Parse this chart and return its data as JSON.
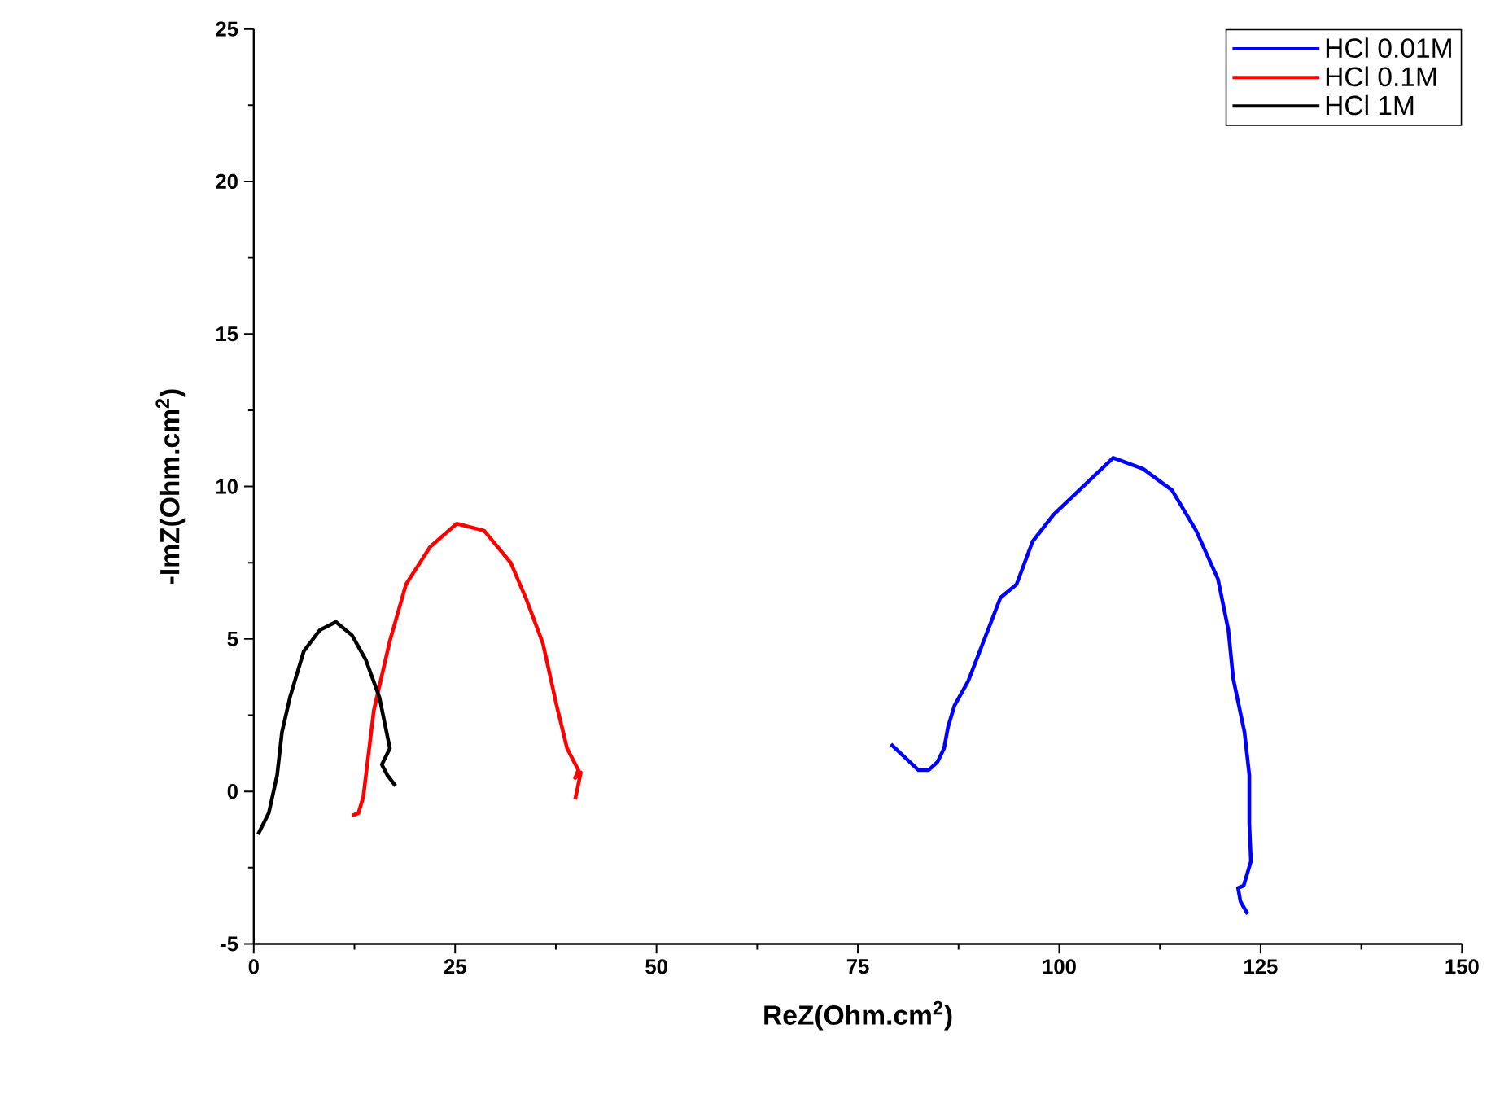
{
  "chart_data": {
    "type": "line",
    "xlabel": "ReZ(Ohm.cm$^{2}$)",
    "ylabel": "-ImZ(Ohm.cm$^{2}$)",
    "xlim": [
      0,
      150
    ],
    "xticks": [
      0,
      25,
      50,
      75,
      100,
      125,
      150
    ],
    "ylim": [
      -5,
      25
    ],
    "yticks": [
      -5,
      0,
      5,
      10,
      15,
      20,
      25
    ],
    "legend": "top right",
    "grid": false,
    "marker": "none",
    "line_style": "solid",
    "series": [
      {
        "name": "HCl 0.01M",
        "color": "#0000ff",
        "x": [
          79.1,
          82.5,
          83.8,
          84.9,
          85.7,
          86.2,
          87.0,
          88.7,
          92.7,
          94.7,
          96.7,
          99.3,
          106.7,
          110.4,
          114.0,
          117.0,
          119.7,
          121.0,
          121.6,
          123.0,
          123.6,
          123.6,
          123.8,
          122.9,
          122.2,
          122.5,
          123.4
        ],
        "values": [
          1.55,
          0.7,
          0.7,
          0.97,
          1.41,
          2.12,
          2.82,
          3.62,
          6.35,
          6.79,
          8.2,
          9.08,
          10.94,
          10.58,
          9.88,
          8.55,
          6.97,
          5.29,
          3.7,
          1.94,
          0.53,
          -1.06,
          -2.29,
          -3.09,
          -3.17,
          -3.61,
          -4.02
        ]
      },
      {
        "name": "HCl 0.1M",
        "color": "#ff0000",
        "x": [
          12.2,
          13.0,
          13.6,
          14.9,
          16.9,
          18.9,
          21.9,
          25.2,
          28.6,
          31.9,
          33.9,
          35.9,
          37.6,
          38.9,
          40.3,
          39.9,
          40.6,
          39.9
        ],
        "values": [
          -0.79,
          -0.71,
          -0.18,
          2.65,
          4.94,
          6.79,
          8.02,
          8.78,
          8.55,
          7.5,
          6.26,
          4.85,
          2.82,
          1.41,
          0.7,
          0.44,
          0.62,
          -0.26
        ]
      },
      {
        "name": "HCl 1M",
        "color": "#000000",
        "x": [
          0.53,
          1.87,
          2.9,
          3.5,
          4.5,
          6.2,
          8.2,
          10.2,
          12.2,
          13.9,
          15.6,
          16.9,
          15.9,
          16.6,
          17.6
        ],
        "values": [
          -1.41,
          -0.7,
          0.53,
          1.94,
          3.09,
          4.59,
          5.29,
          5.56,
          5.12,
          4.32,
          3.09,
          1.41,
          0.88,
          0.53,
          0.18
        ]
      }
    ]
  }
}
